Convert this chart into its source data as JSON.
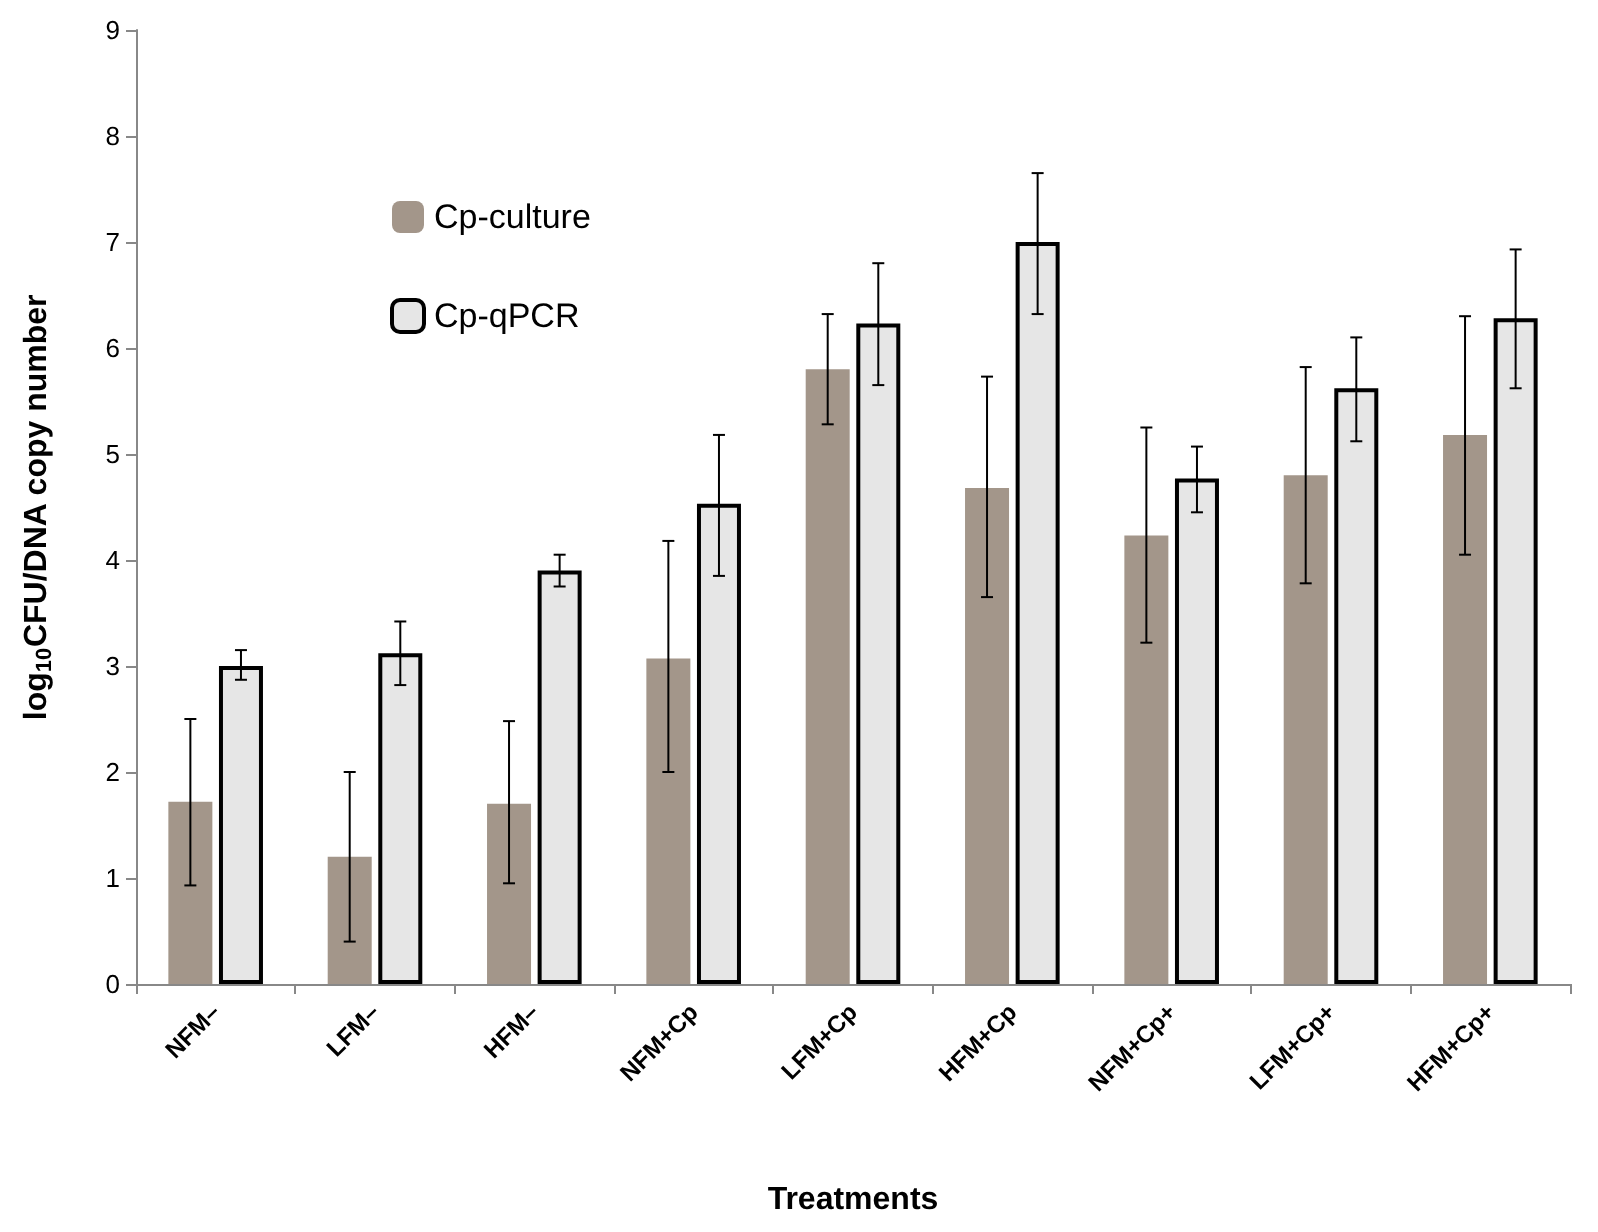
{
  "chart_data": {
    "type": "bar",
    "xlabel": "Treatments",
    "ylabel": "log$_{10}$CFU/DNA copy number",
    "categories": [
      "NFM–",
      "LFM–",
      "HFM–",
      "NFM+Cp",
      "LFM+Cp",
      "HFM+Cp",
      "NFM+Cp+",
      "LFM+Cp+",
      "HFM+Cp+"
    ],
    "series": [
      {
        "name": "Cp-culture",
        "color": "#a3968a",
        "values": [
          1.72,
          1.2,
          1.7,
          3.07,
          5.8,
          4.68,
          4.23,
          4.8,
          5.18
        ],
        "errors": [
          [
            0.93,
            2.5
          ],
          [
            0.4,
            2.0
          ],
          [
            0.95,
            2.48
          ],
          [
            2.0,
            4.18
          ],
          [
            5.28,
            6.32
          ],
          [
            3.65,
            5.73
          ],
          [
            3.22,
            5.25
          ],
          [
            3.78,
            5.82
          ],
          [
            4.05,
            6.3
          ]
        ]
      },
      {
        "name": "Cp-qPCR",
        "color": "#e6e6e6",
        "values": [
          3.0,
          3.12,
          3.9,
          4.53,
          6.23,
          7.0,
          4.77,
          5.62,
          6.28
        ],
        "errors": [
          [
            2.87,
            3.15
          ],
          [
            2.82,
            3.42
          ],
          [
            3.75,
            4.05
          ],
          [
            3.85,
            5.18
          ],
          [
            5.65,
            6.8
          ],
          [
            6.32,
            7.65
          ],
          [
            4.45,
            5.07
          ],
          [
            5.12,
            6.1
          ],
          [
            5.62,
            6.93
          ]
        ]
      }
    ],
    "ylim": [
      0,
      9
    ],
    "yticks": [
      0,
      1,
      2,
      3,
      4,
      5,
      6,
      7,
      8,
      9
    ],
    "grid": false,
    "legend": "top left"
  }
}
